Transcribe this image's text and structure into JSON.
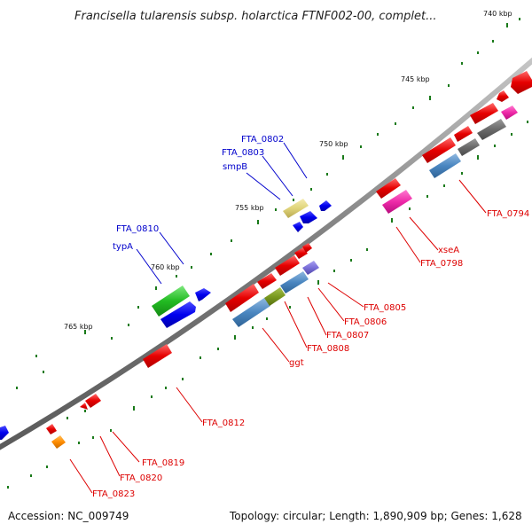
{
  "title": "Francisella tularensis subsp. holarctica FTNF002-00, complet...",
  "footer": {
    "accession": "Accession: NC_009749",
    "summary": "Topology: circular; Length: 1,890,909 bp; Genes: 1,628"
  },
  "colors": {
    "backbone": "#8a8a8a",
    "tick": "#1a7a1a",
    "forward_label": "#0000cc",
    "reverse_label": "#dd0000"
  },
  "scale_labels": [
    "740 kbp",
    "745 kbp",
    "750 kbp",
    "755 kbp",
    "760 kbp",
    "765 kbp"
  ],
  "forward_labels": [
    "FTA_0802",
    "FTA_0803",
    "smpB",
    "FTA_0810",
    "typA"
  ],
  "reverse_labels": [
    "FTA_0794",
    "xseA",
    "FTA_0798",
    "FTA_0805",
    "FTA_0806",
    "FTA_0807",
    "FTA_0808",
    "ggt",
    "FTA_0812",
    "FTA_0819",
    "FTA_0820",
    "FTA_0823"
  ]
}
